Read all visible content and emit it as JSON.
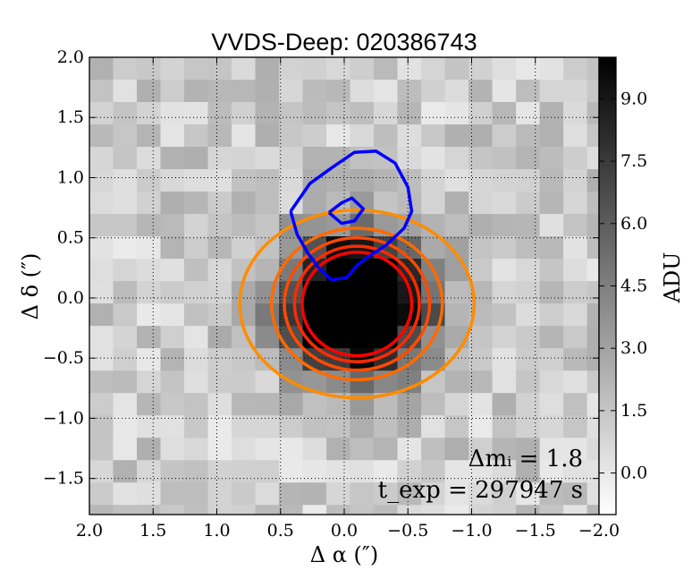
{
  "chart_data": {
    "type": "heatmap",
    "title": "VVDS-Deep: 020386743",
    "xlabel": "Δ α  (″)",
    "ylabel": "Δ δ  (″)",
    "xlim": [
      2.0,
      -2.0
    ],
    "ylim": [
      -1.8,
      2.0
    ],
    "xticks": [
      2.0,
      1.5,
      1.0,
      0.5,
      0.0,
      -0.5,
      -1.0,
      -1.5,
      -2.0
    ],
    "xtick_labels": [
      "2.0",
      "1.5",
      "1.0",
      "0.5",
      "0.0",
      "−0.5",
      "−1.0",
      "−1.5",
      "−2.0"
    ],
    "yticks": [
      2.0,
      1.5,
      1.0,
      0.5,
      0.0,
      -0.5,
      -1.0,
      -1.5
    ],
    "ytick_labels": [
      "2.0",
      "1.5",
      "1.0",
      "0.5",
      "0.0",
      "−0.5",
      "−1.0",
      "−1.5"
    ],
    "grid": true,
    "image": {
      "description": "grayscale pixel flux map, bright source centred near (-0.1, -0.05)",
      "source_center": [
        -0.1,
        -0.05
      ],
      "source_sigma_arcsec": 0.38,
      "peak_adu": 16.0,
      "background_adu": 1.2,
      "pixel_size_arcsec": 0.186
    },
    "colorbar": {
      "label": "ADU",
      "range": [
        -1.0,
        10.0
      ],
      "ticks": [
        0.0,
        1.5,
        3.0,
        4.5,
        6.0,
        7.5,
        9.0
      ],
      "tick_labels": [
        "0.0",
        "1.5",
        "3.0",
        "4.5",
        "6.0",
        "7.5",
        "9.0"
      ],
      "colormap": "gray_r"
    },
    "contour_sets": [
      {
        "name": "image-contours",
        "shape": "ellipse",
        "center": [
          -0.1,
          -0.05
        ],
        "levels": [
          {
            "rx": 0.92,
            "ry": 0.78,
            "color": "#ff8c00"
          },
          {
            "rx": 0.67,
            "ry": 0.63,
            "color": "#ff6a00"
          },
          {
            "rx": 0.57,
            "ry": 0.55,
            "color": "#ff4a00"
          },
          {
            "rx": 0.49,
            "ry": 0.48,
            "color": "#ff2a00"
          },
          {
            "rx": 0.43,
            "ry": 0.43,
            "color": "#ff0000"
          }
        ]
      },
      {
        "name": "blue-contours",
        "color": "#0000ff",
        "paths": [
          [
            [
              0.42,
              0.72
            ],
            [
              0.27,
              0.95
            ],
            [
              0.1,
              1.08
            ],
            [
              -0.08,
              1.21
            ],
            [
              -0.25,
              1.22
            ],
            [
              -0.4,
              1.12
            ],
            [
              -0.5,
              0.92
            ],
            [
              -0.53,
              0.72
            ],
            [
              -0.47,
              0.58
            ],
            [
              -0.33,
              0.44
            ],
            [
              -0.2,
              0.35
            ],
            [
              -0.1,
              0.27
            ],
            [
              -0.02,
              0.17
            ],
            [
              0.1,
              0.15
            ],
            [
              0.2,
              0.25
            ],
            [
              0.29,
              0.38
            ],
            [
              0.37,
              0.53
            ],
            [
              0.42,
              0.72
            ]
          ],
          [
            [
              0.12,
              0.71
            ],
            [
              0.02,
              0.79
            ],
            [
              -0.06,
              0.83
            ],
            [
              -0.15,
              0.74
            ],
            [
              -0.08,
              0.64
            ],
            [
              0.02,
              0.62
            ],
            [
              0.12,
              0.71
            ]
          ]
        ]
      }
    ],
    "annotations": [
      {
        "name": "delta-m",
        "text": "Δmᵢ = 1.8"
      },
      {
        "name": "t-exp",
        "text": "t_exp = 297947 s"
      }
    ]
  }
}
